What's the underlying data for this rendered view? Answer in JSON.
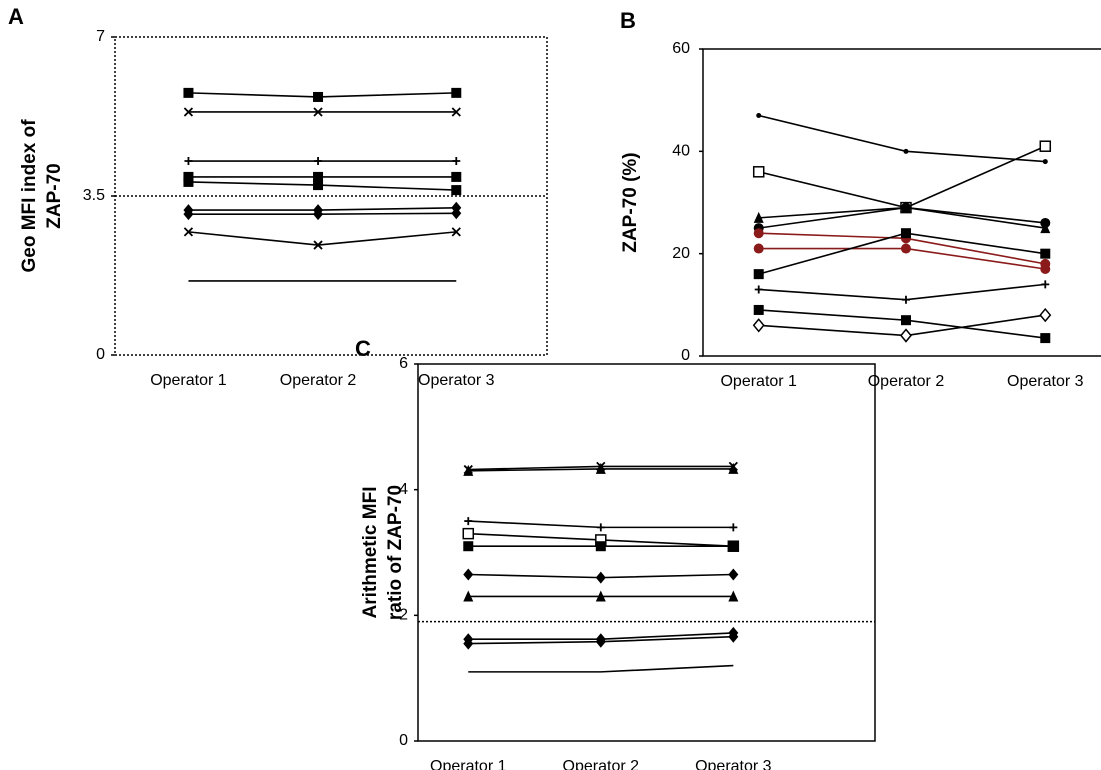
{
  "chart_data": [
    {
      "type": "line",
      "label": "A",
      "ylabel": [
        "Geo MFI index of",
        "ZAP-70"
      ],
      "frame": "dotted",
      "categories": [
        "Operator 1",
        "Operator 2",
        "Operator 3"
      ],
      "ylim": [
        0,
        7
      ],
      "yticks": [
        0,
        3.5,
        7
      ],
      "hline": 3.5,
      "series": [
        {
          "color": "#000000",
          "marker": "square",
          "values": [
            5.77,
            5.68,
            5.77
          ]
        },
        {
          "color": "#000000",
          "marker": "x",
          "values": [
            5.35,
            5.35,
            5.35
          ]
        },
        {
          "color": "#000000",
          "marker": "plus",
          "values": [
            4.27,
            4.27,
            4.27
          ]
        },
        {
          "color": "#000000",
          "marker": "square",
          "values": [
            3.92,
            3.92,
            3.92
          ]
        },
        {
          "color": "#000000",
          "marker": "square",
          "values": [
            3.81,
            3.74,
            3.63
          ]
        },
        {
          "color": "#000000",
          "marker": "diamond",
          "values": [
            3.19,
            3.19,
            3.24
          ]
        },
        {
          "color": "#000000",
          "marker": "diamond",
          "values": [
            3.1,
            3.1,
            3.12
          ]
        },
        {
          "color": "#000000",
          "marker": "x",
          "values": [
            2.71,
            2.42,
            2.71
          ]
        },
        {
          "color": "#000000",
          "marker": "none",
          "values": [
            1.63,
            1.63,
            1.63
          ]
        }
      ]
    },
    {
      "type": "line",
      "label": "B",
      "ylabel": [
        "ZAP-70 (%)"
      ],
      "frame": "open",
      "categories": [
        "Operator 1",
        "Operator 2",
        "Operator 3"
      ],
      "ylim": [
        0,
        60
      ],
      "yticks": [
        0,
        20,
        40,
        60
      ],
      "series": [
        {
          "color": "#000000",
          "marker": "dot",
          "values": [
            47,
            40,
            38
          ]
        },
        {
          "color": "#000000",
          "marker": "open-square",
          "values": [
            36,
            29,
            41
          ]
        },
        {
          "color": "#000000",
          "marker": "triangle",
          "values": [
            27,
            29,
            25
          ]
        },
        {
          "color": "#000000",
          "marker": "circle",
          "values": [
            25,
            29,
            26
          ]
        },
        {
          "color": "#8b1a1a",
          "marker": "circle",
          "values": [
            24,
            23,
            18
          ]
        },
        {
          "color": "#8b1a1a",
          "marker": "circle",
          "values": [
            21,
            21,
            17
          ]
        },
        {
          "color": "#000000",
          "marker": "square",
          "values": [
            16,
            24,
            20
          ]
        },
        {
          "color": "#000000",
          "marker": "plus",
          "values": [
            13,
            11,
            14
          ]
        },
        {
          "color": "#000000",
          "marker": "square",
          "values": [
            9,
            7,
            3.5
          ]
        },
        {
          "color": "#000000",
          "marker": "open-diamond",
          "values": [
            6,
            4,
            8
          ]
        }
      ]
    },
    {
      "type": "line",
      "label": "C",
      "ylabel": [
        "Arithmetic MFI",
        "ratio of ZAP-70"
      ],
      "frame": "solid",
      "categories": [
        "Operator 1",
        "Operator 2",
        "Operator 3"
      ],
      "ylim": [
        0,
        6
      ],
      "yticks": [
        0,
        2,
        4,
        6
      ],
      "hline": 1.9,
      "series": [
        {
          "color": "#000000",
          "marker": "triangle",
          "values": [
            4.3,
            4.33,
            4.33
          ]
        },
        {
          "color": "#000000",
          "marker": "x",
          "values": [
            4.32,
            4.37,
            4.37
          ]
        },
        {
          "color": "#000000",
          "marker": "plus",
          "values": [
            3.5,
            3.4,
            3.4
          ]
        },
        {
          "color": "#000000",
          "marker": "open-square",
          "values": [
            3.3,
            3.2,
            3.1
          ]
        },
        {
          "color": "#000000",
          "marker": "square",
          "values": [
            3.1,
            3.1,
            3.1
          ]
        },
        {
          "color": "#000000",
          "marker": "diamond",
          "values": [
            2.65,
            2.6,
            2.65
          ]
        },
        {
          "color": "#000000",
          "marker": "triangle",
          "values": [
            2.3,
            2.3,
            2.3
          ]
        },
        {
          "color": "#000000",
          "marker": "diamond",
          "values": [
            1.62,
            1.62,
            1.72
          ]
        },
        {
          "color": "#000000",
          "marker": "diamond",
          "values": [
            1.55,
            1.58,
            1.66
          ]
        },
        {
          "color": "#000000",
          "marker": "none",
          "values": [
            1.1,
            1.1,
            1.2
          ]
        }
      ]
    }
  ]
}
